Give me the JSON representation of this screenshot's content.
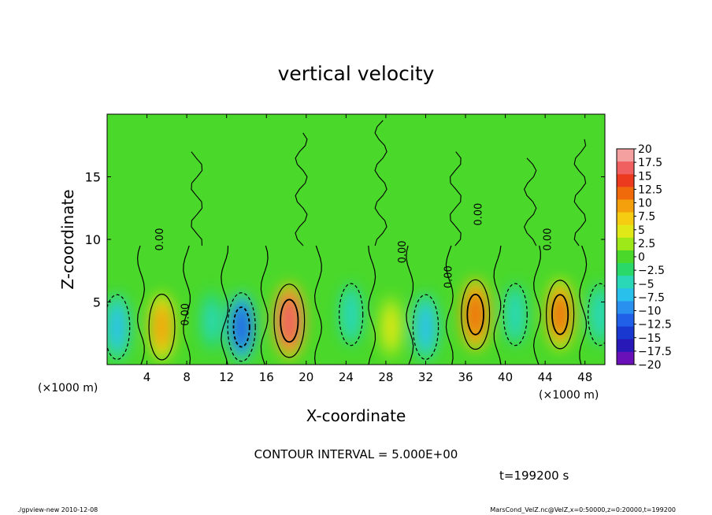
{
  "chart_data": {
    "type": "heatmap",
    "title": "vertical velocity",
    "xlabel": "X-coordinate",
    "ylabel": "Z-coordinate",
    "x_unit_left": "(×1000 m)",
    "x_unit_right": "(×1000 m)",
    "xlim": [
      0,
      50
    ],
    "ylim": [
      0,
      20
    ],
    "x_ticks": [
      4,
      8,
      12,
      16,
      20,
      24,
      28,
      32,
      36,
      40,
      44,
      48
    ],
    "y_ticks": [
      5,
      10,
      15
    ],
    "colorbar": {
      "min": -20,
      "max": 20,
      "labels": [
        "20",
        "17.5",
        "15",
        "12.5",
        "10",
        "7.5",
        "5",
        "2.5",
        "0",
        "−2.5",
        "−5",
        "−7.5",
        "−10",
        "−12.5",
        "−15",
        "−17.5",
        "−20"
      ],
      "colors": [
        "#f5a0a0",
        "#f06060",
        "#ec3a1e",
        "#f06a0c",
        "#f4a00c",
        "#f6cc12",
        "#e0e818",
        "#9ee81a",
        "#4ad82a",
        "#2ad86a",
        "#2ad8b8",
        "#2ac0ec",
        "#2a90f0",
        "#2060e8",
        "#1838d0",
        "#2818b8",
        "#6a10b8"
      ]
    },
    "contour_interval_text": "CONTOUR INTERVAL = 5.000E+00",
    "contour_label": "0.00",
    "time_text": "t=199200  s",
    "cells": [
      {
        "x": 1,
        "z": 3,
        "w": -8
      },
      {
        "x": 5.5,
        "z": 3,
        "w": 9
      },
      {
        "x": 10.5,
        "z": 3.5,
        "w": -4
      },
      {
        "x": 13.5,
        "z": 3,
        "w": -12
      },
      {
        "x": 18.3,
        "z": 3.5,
        "w": 17
      },
      {
        "x": 24.5,
        "z": 4,
        "w": -5
      },
      {
        "x": 28.5,
        "z": 3,
        "w": 4
      },
      {
        "x": 32,
        "z": 3,
        "w": -8
      },
      {
        "x": 37,
        "z": 4,
        "w": 13
      },
      {
        "x": 41,
        "z": 4,
        "w": -5
      },
      {
        "x": 45.5,
        "z": 4,
        "w": 12
      },
      {
        "x": 49.5,
        "z": 4,
        "w": -5
      }
    ]
  },
  "footer": {
    "left": "./gpview-new   2010-12-08",
    "right": "MarsCond_VelZ.nc@VelZ,x=0:50000,z=0:20000,t=199200"
  }
}
